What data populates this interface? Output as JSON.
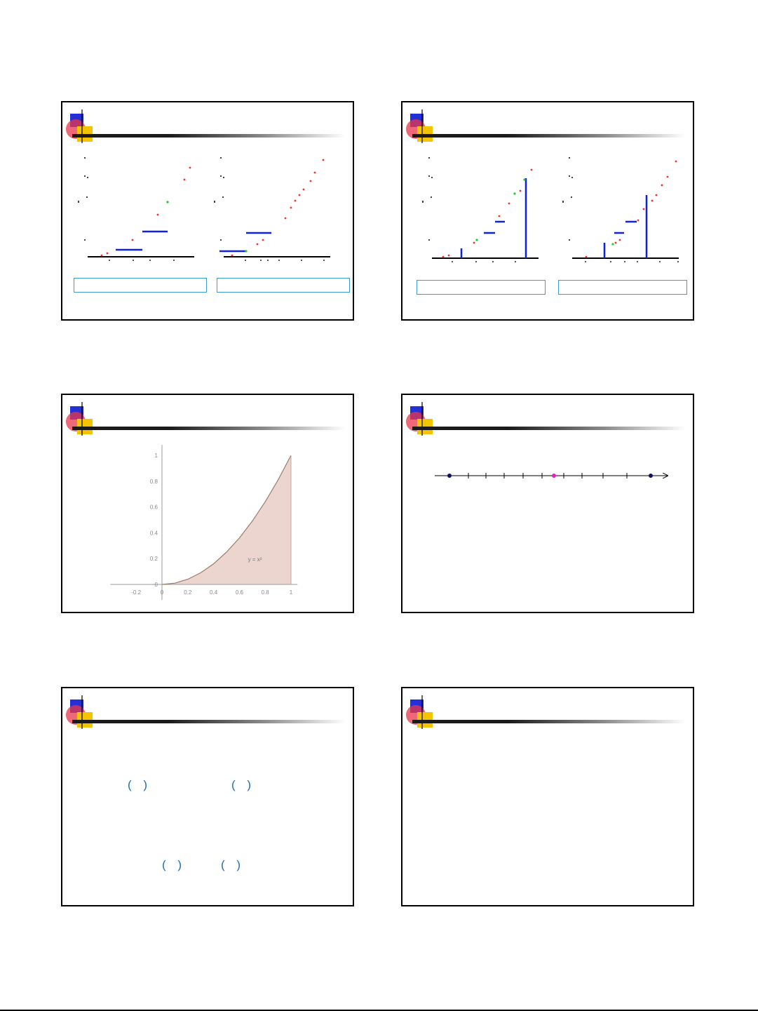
{
  "page": {
    "slide_count": 6
  },
  "colors": {
    "accent_blue": "#2430d6",
    "accent_red": "#e8364a",
    "accent_yellow": "#f5c400",
    "step_blue": "#1020e8",
    "point_red": "#ff2a2a",
    "point_green": "#22cc22",
    "caption_border": "#3a9bd6",
    "paren_blue": "#1e6fb5",
    "area_fill": "#ecd5cf",
    "numberline_magenta": "#e020c0",
    "numberline_navy": "#101060"
  },
  "slide5": {
    "parens": [
      "( )",
      "( )",
      "( )",
      "( )"
    ]
  },
  "chart_data": [
    {
      "type": "line",
      "title": "",
      "xlabel": "",
      "ylabel": "",
      "x_tick_labels": [
        "-0.2",
        "0",
        "0.2",
        "0.4",
        "0.6",
        "0.8",
        "1"
      ],
      "y_tick_labels": [
        "0",
        "0.2",
        "0.4",
        "0.6",
        "0.8",
        "1"
      ],
      "xlim": [
        -0.4,
        1.05
      ],
      "ylim": [
        0,
        1.05
      ],
      "series": [
        {
          "x": [
            0,
            0.1,
            0.2,
            0.3,
            0.4,
            0.5,
            0.6,
            0.7,
            0.8,
            0.9,
            1.0
          ],
          "values": [
            0,
            0.01,
            0.04,
            0.09,
            0.16,
            0.25,
            0.36,
            0.49,
            0.64,
            0.81,
            1.0
          ]
        }
      ],
      "shaded_region": {
        "from": 0,
        "to": 1
      },
      "annotation": "y = x²",
      "grid": false
    }
  ]
}
